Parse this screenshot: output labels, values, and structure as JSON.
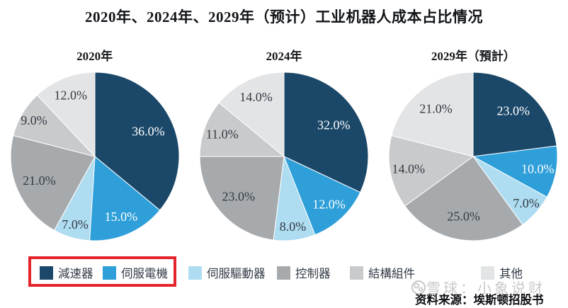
{
  "page": {
    "title": "2020年、2024年、2029年（预计）工业机器人成本占比情况"
  },
  "chart_data": {
    "type": "pie",
    "title": "2020年、2024年、2029年（预计）工业机器人成本占比情况",
    "legend_position": "bottom",
    "start_angle_deg": 0,
    "direction": "clockwise",
    "categories": [
      "減速器",
      "伺服電機",
      "伺服驅動器",
      "控制器",
      "結構組件",
      "其他"
    ],
    "colors": [
      "#1b4869",
      "#2e9fd9",
      "#aedcf1",
      "#a7aaad",
      "#c8cacc",
      "#e3e4e6"
    ],
    "slice_label_colors": [
      "#ffffff",
      "#ffffff",
      "#343b44",
      "#343b44",
      "#343b44",
      "#343b44"
    ],
    "charts": [
      {
        "title": "2020年",
        "values": [
          36,
          15,
          7,
          21,
          9,
          12
        ],
        "display_labels": [
          "36.0%",
          "15.0%",
          "7.0%",
          "21.0%",
          "9.0%",
          "12.0%"
        ]
      },
      {
        "title": "2024年",
        "values": [
          32,
          12,
          8,
          23,
          11,
          14
        ],
        "display_labels": [
          "32.0%",
          "12.0%",
          "8.0%",
          "23.0%",
          "11.0%",
          "14.0%"
        ]
      },
      {
        "title": "2029年（預計）",
        "values": [
          23,
          10,
          7,
          25,
          14,
          21
        ],
        "display_labels": [
          "23.0%",
          "10.0%",
          "7.0%",
          "25.0%",
          "14.0%",
          "21.0%"
        ]
      }
    ]
  },
  "legend": {
    "items": [
      {
        "label": "減速器"
      },
      {
        "label": "伺服電機"
      },
      {
        "label": "伺服驅動器"
      },
      {
        "label": "控制器"
      },
      {
        "label": "結構組件"
      },
      {
        "label": "其他"
      }
    ],
    "highlight_box": {
      "color": "#e4242b",
      "highlighted_items": [
        "減速器",
        "伺服電機"
      ]
    }
  },
  "footer": {
    "watermark": "雪球：小象说财",
    "source": "资料来源：埃斯顿招股书"
  }
}
